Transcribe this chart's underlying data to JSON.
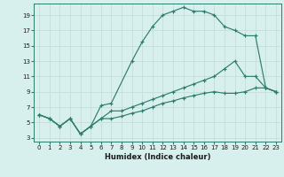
{
  "xlabel": "Humidex (Indice chaleur)",
  "bg_color": "#d8f0ed",
  "grid_color": "#c4ddd8",
  "line_color": "#2d7d6e",
  "xlim": [
    -0.5,
    23.5
  ],
  "ylim": [
    2.5,
    20.5
  ],
  "xticks": [
    0,
    1,
    2,
    3,
    4,
    5,
    6,
    7,
    8,
    9,
    10,
    11,
    12,
    13,
    14,
    15,
    16,
    17,
    18,
    19,
    20,
    21,
    22,
    23
  ],
  "yticks": [
    3,
    5,
    7,
    9,
    11,
    13,
    15,
    17,
    19
  ],
  "lines": [
    {
      "x": [
        0,
        1,
        2,
        3,
        4,
        5,
        6,
        7,
        9,
        10,
        11,
        12,
        13,
        14,
        15,
        16,
        17,
        18,
        19,
        20,
        21,
        22,
        23
      ],
      "y": [
        6,
        5.5,
        4.5,
        5.5,
        3.5,
        4.5,
        7.2,
        7.5,
        13,
        15.5,
        17.5,
        19,
        19.5,
        20,
        19.5,
        19.5,
        19,
        17.5,
        17,
        16.3,
        16.3,
        9.5,
        9
      ]
    },
    {
      "x": [
        0,
        1,
        2,
        3,
        4,
        5,
        6,
        7,
        8,
        9,
        10,
        11,
        12,
        13,
        14,
        15,
        16,
        17,
        18,
        19,
        20,
        21,
        22,
        23
      ],
      "y": [
        6,
        5.5,
        4.5,
        5.5,
        3.5,
        4.5,
        5.5,
        6.5,
        6.5,
        7,
        7.5,
        8,
        8.5,
        9,
        9.5,
        10,
        10.5,
        11,
        12,
        13,
        11,
        11,
        9.5,
        9
      ]
    },
    {
      "x": [
        0,
        1,
        2,
        3,
        4,
        5,
        6,
        7,
        8,
        9,
        10,
        11,
        12,
        13,
        14,
        15,
        16,
        17,
        18,
        19,
        20,
        21,
        22,
        23
      ],
      "y": [
        6,
        5.5,
        4.5,
        5.5,
        3.5,
        4.5,
        5.5,
        5.5,
        5.8,
        6.2,
        6.5,
        7,
        7.5,
        7.8,
        8.2,
        8.5,
        8.8,
        9,
        8.8,
        8.8,
        9,
        9.5,
        9.5,
        9
      ]
    }
  ]
}
